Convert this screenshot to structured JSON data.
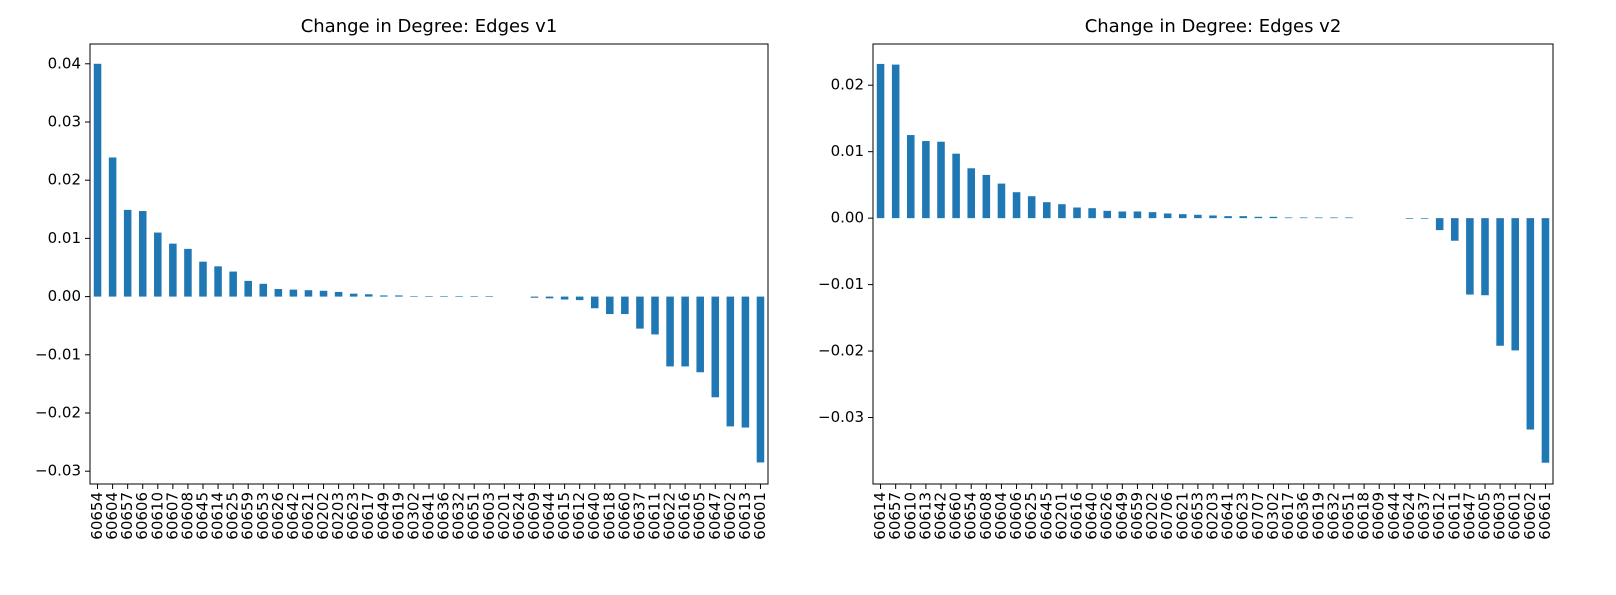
{
  "chart_data": [
    {
      "type": "bar",
      "title": "Change in Degree: Edges v1",
      "color": "#1f77b4",
      "categories": [
        "60654",
        "60604",
        "60657",
        "60606",
        "60610",
        "60607",
        "60608",
        "60645",
        "60614",
        "60625",
        "60659",
        "60653",
        "60626",
        "60642",
        "60621",
        "60202",
        "60203",
        "60623",
        "60617",
        "60649",
        "60619",
        "60302",
        "60641",
        "60636",
        "60632",
        "60651",
        "60603",
        "60201",
        "60624",
        "60609",
        "60644",
        "60615",
        "60612",
        "60640",
        "60618",
        "60660",
        "60637",
        "60611",
        "60622",
        "60616",
        "60605",
        "60647",
        "60602",
        "60613",
        "60601"
      ],
      "values": [
        0.04,
        0.0239,
        0.0149,
        0.0147,
        0.011,
        0.0091,
        0.0082,
        0.006,
        0.0052,
        0.0043,
        0.0027,
        0.0022,
        0.0013,
        0.0012,
        0.0011,
        0.001,
        0.0008,
        0.0005,
        0.0004,
        0.0002,
        0.0002,
        0.0001,
        0.0001,
        0.0001,
        0.0001,
        0.0001,
        0.0001,
        0,
        0,
        -0.0002,
        -0.0003,
        -0.0005,
        -0.0006,
        -0.002,
        -0.003,
        -0.003,
        -0.0055,
        -0.0065,
        -0.012,
        -0.012,
        -0.013,
        -0.0173,
        -0.0223,
        -0.0225,
        -0.0285
      ],
      "ylim": [
        -0.0322,
        0.0434
      ],
      "yticks": [
        {
          "value": -0.03,
          "label": "−0.03"
        },
        {
          "value": -0.02,
          "label": "−0.02"
        },
        {
          "value": -0.01,
          "label": "−0.01"
        },
        {
          "value": 0,
          "label": "0.00"
        },
        {
          "value": 0.01,
          "label": "0.01"
        },
        {
          "value": 0.02,
          "label": "0.02"
        },
        {
          "value": 0.03,
          "label": "0.03"
        },
        {
          "value": 0.04,
          "label": "0.04"
        }
      ]
    },
    {
      "type": "bar",
      "title": "Change in Degree: Edges v2",
      "color": "#1f77b4",
      "categories": [
        "60614",
        "60657",
        "60610",
        "60613",
        "60642",
        "60660",
        "60654",
        "60608",
        "60604",
        "60606",
        "60625",
        "60645",
        "60201",
        "60616",
        "60640",
        "60626",
        "60649",
        "60659",
        "60202",
        "60706",
        "60621",
        "60653",
        "60203",
        "60641",
        "60623",
        "60707",
        "60302",
        "60617",
        "60636",
        "60619",
        "60632",
        "60651",
        "60618",
        "60609",
        "60644",
        "60624",
        "60637",
        "60612",
        "60611",
        "60647",
        "60605",
        "60603",
        "60601",
        "60602",
        "60661"
      ],
      "values": [
        0.0232,
        0.0231,
        0.0125,
        0.0116,
        0.0115,
        0.0097,
        0.0075,
        0.0065,
        0.0052,
        0.0039,
        0.0033,
        0.0024,
        0.0021,
        0.0016,
        0.0015,
        0.0011,
        0.001,
        0.001,
        0.0009,
        0.0007,
        0.0006,
        0.0005,
        0.0004,
        0.0003,
        0.0003,
        0.0002,
        0.0002,
        0.0001,
        0.0001,
        0.0001,
        0.0001,
        0.0001,
        0,
        0,
        0,
        -0.0001,
        -0.0001,
        -0.0018,
        -0.0034,
        -0.0115,
        -0.0116,
        -0.0192,
        -0.0199,
        -0.0318,
        -0.0368
      ],
      "ylim": [
        -0.04,
        0.0262
      ],
      "yticks": [
        {
          "value": -0.03,
          "label": "−0.03"
        },
        {
          "value": -0.02,
          "label": "−0.02"
        },
        {
          "value": -0.01,
          "label": "−0.01"
        },
        {
          "value": 0,
          "label": "0.00"
        },
        {
          "value": 0.01,
          "label": "0.01"
        },
        {
          "value": 0.02,
          "label": "0.02"
        }
      ]
    }
  ]
}
